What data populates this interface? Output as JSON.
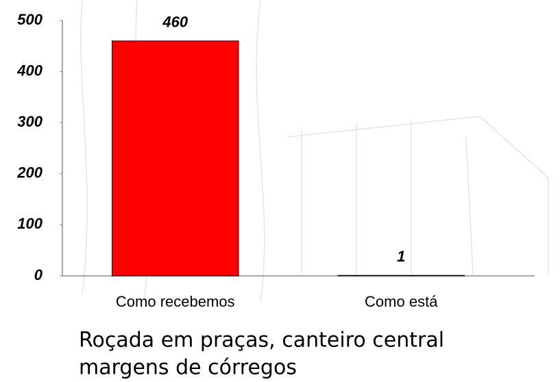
{
  "chart_data": {
    "type": "bar",
    "title": [
      "Roçada em praças, canteiro central",
      "margens de córregos"
    ],
    "categories": [
      "Como recebemos",
      "Como está"
    ],
    "values": [
      460,
      1
    ],
    "colors": [
      "#ff0000",
      "#ff0000"
    ],
    "ylim": [
      0,
      500
    ],
    "yticks": [
      0,
      100,
      200,
      300,
      400,
      500
    ],
    "grid": false
  }
}
